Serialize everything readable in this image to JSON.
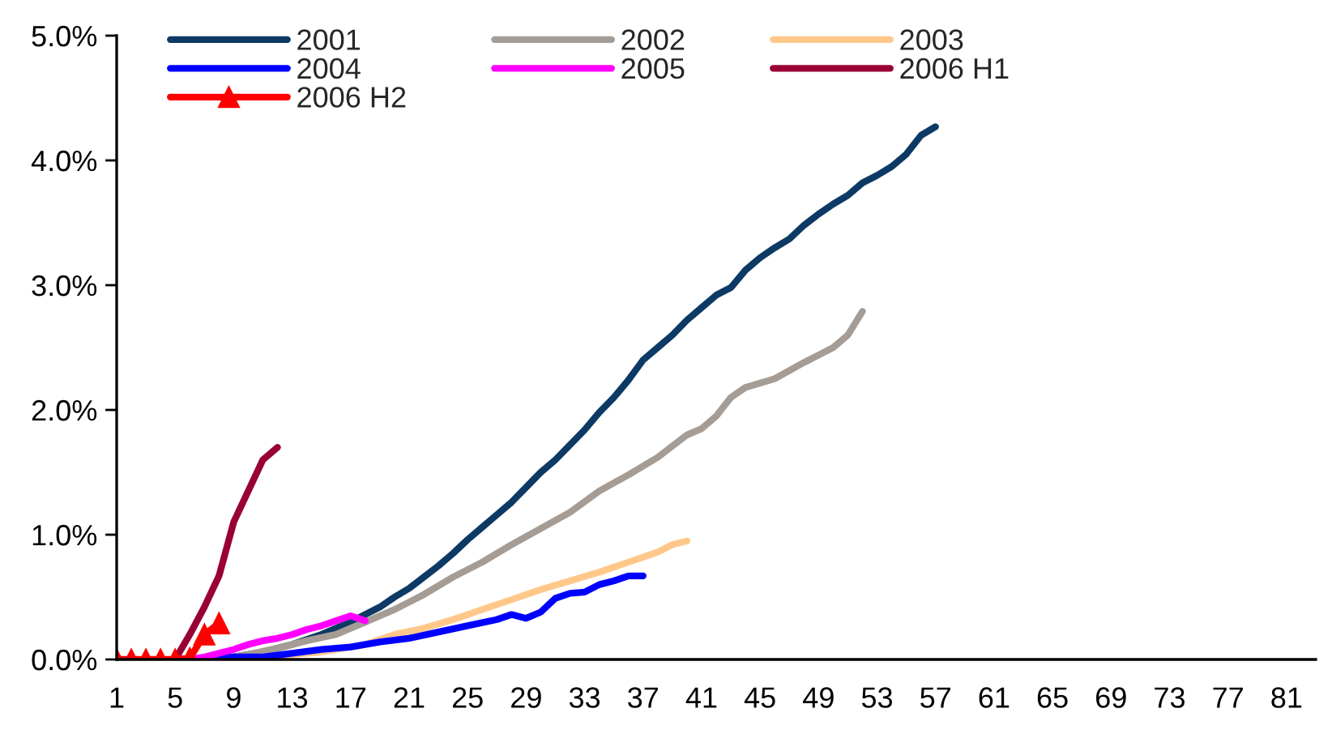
{
  "chart_data": {
    "type": "line",
    "xlim": [
      1,
      83
    ],
    "xticks": [
      1,
      5,
      9,
      13,
      17,
      21,
      25,
      29,
      33,
      37,
      41,
      45,
      49,
      53,
      57,
      61,
      65,
      69,
      73,
      77,
      81
    ],
    "ylim": [
      0,
      5
    ],
    "yticks": [
      {
        "value": 0,
        "label": "0.0%"
      },
      {
        "value": 1,
        "label": "1.0%"
      },
      {
        "value": 2,
        "label": "2.0%"
      },
      {
        "value": 3,
        "label": "3.0%"
      },
      {
        "value": 4,
        "label": "4.0%"
      },
      {
        "value": 5,
        "label": "5.0%"
      }
    ],
    "grid": false,
    "legend": "top left",
    "series": [
      {
        "name": "2001",
        "color": "#0d3a64",
        "x": [
          7,
          9,
          11,
          13,
          15,
          17,
          18,
          19,
          20,
          21,
          22,
          23,
          24,
          25,
          26,
          27,
          28,
          29,
          30,
          31,
          32,
          33,
          34,
          35,
          36,
          37,
          38,
          39,
          40,
          41,
          42,
          43,
          44,
          45,
          46,
          47,
          48,
          49,
          50,
          51,
          52,
          53,
          54,
          55,
          56,
          57
        ],
        "values": [
          0,
          0.02,
          0.06,
          0.12,
          0.2,
          0.3,
          0.36,
          0.42,
          0.5,
          0.57,
          0.66,
          0.75,
          0.85,
          0.96,
          1.06,
          1.16,
          1.26,
          1.38,
          1.5,
          1.6,
          1.72,
          1.84,
          1.98,
          2.1,
          2.24,
          2.4,
          2.5,
          2.6,
          2.72,
          2.82,
          2.92,
          2.98,
          3.12,
          3.22,
          3.3,
          3.37,
          3.48,
          3.57,
          3.65,
          3.72,
          3.82,
          3.88,
          3.95,
          4.05,
          4.2,
          4.27
        ]
      },
      {
        "name": "2002",
        "color": "#a59d95",
        "x": [
          8,
          10,
          12,
          14,
          16,
          18,
          20,
          22,
          24,
          26,
          28,
          30,
          32,
          34,
          36,
          38,
          40,
          41,
          42,
          43,
          44,
          46,
          48,
          50,
          51,
          52
        ],
        "values": [
          0,
          0.04,
          0.09,
          0.15,
          0.2,
          0.3,
          0.4,
          0.52,
          0.66,
          0.78,
          0.92,
          1.05,
          1.18,
          1.35,
          1.48,
          1.62,
          1.8,
          1.85,
          1.95,
          2.1,
          2.18,
          2.25,
          2.38,
          2.5,
          2.6,
          2.79
        ]
      },
      {
        "name": "2003",
        "color": "#ffc88a",
        "x": [
          9,
          12,
          15,
          18,
          20,
          22,
          24,
          26,
          28,
          30,
          32,
          34,
          36,
          38,
          39,
          40
        ],
        "values": [
          0,
          null,
          0.06,
          0.12,
          0.2,
          0.25,
          0.32,
          0.4,
          0.48,
          0.56,
          0.63,
          0.7,
          0.78,
          0.86,
          0.92,
          0.95
        ]
      },
      {
        "name": "2004",
        "color": "#0000ff",
        "x": [
          7,
          9,
          11,
          13,
          15,
          17,
          19,
          21,
          23,
          25,
          27,
          28,
          29,
          30,
          31,
          32,
          33,
          34,
          35,
          36,
          37
        ],
        "values": [
          0,
          0.02,
          0.02,
          0.05,
          0.08,
          0.1,
          0.14,
          0.17,
          0.22,
          0.27,
          0.32,
          0.36,
          0.33,
          0.38,
          0.49,
          0.53,
          0.54,
          0.6,
          0.63,
          0.67,
          0.67
        ]
      },
      {
        "name": "2005",
        "color": "#ff00ff",
        "x": [
          6,
          7,
          8,
          9,
          10,
          11,
          12,
          13,
          14,
          15,
          16,
          17,
          18
        ],
        "values": [
          0,
          0.02,
          0.05,
          0.08,
          0.12,
          0.15,
          0.17,
          0.2,
          0.24,
          0.27,
          0.31,
          0.35,
          0.31
        ]
      },
      {
        "name": "2006 H1",
        "color": "#990033",
        "x": [
          5,
          6,
          7,
          8,
          9,
          10,
          11,
          12
        ],
        "values": [
          0,
          0.2,
          0.42,
          0.67,
          1.1,
          1.35,
          1.6,
          1.7
        ]
      },
      {
        "name": "2006 H2",
        "color": "#ff0000",
        "marker": "triangle",
        "x": [
          1,
          2,
          3,
          4,
          5,
          6,
          7,
          8
        ],
        "values": [
          0,
          0,
          0,
          0,
          0,
          0.01,
          0.2,
          0.29
        ]
      }
    ]
  }
}
